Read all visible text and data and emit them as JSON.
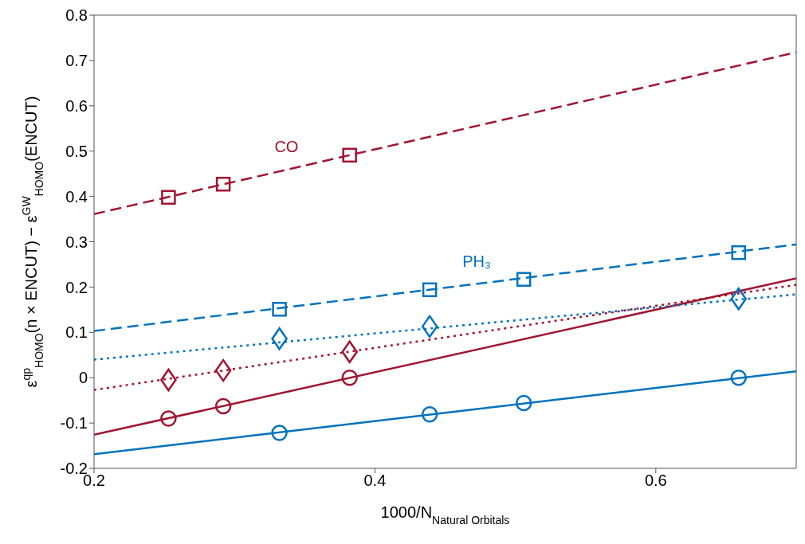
{
  "chart_data": {
    "type": "line",
    "xlabel": "1000/N$_{Natural Orbitals}$",
    "ylabel": "ε$^{qp}$$_{HOMO}$(n × ENCUT) − ε$^{GW}$$_{HOMO}$(ENCUT)",
    "xlim": [
      0.2,
      0.7
    ],
    "xticks": [
      0.2,
      0.4,
      0.6
    ],
    "ylim": [
      -0.2,
      0.8
    ],
    "yticks": [
      -0.2,
      -0.1,
      0,
      0.1,
      0.2,
      0.3,
      0.4,
      0.5,
      0.6,
      0.7,
      0.8
    ],
    "grid": false,
    "legend": false,
    "series": [
      {
        "type": "scatter",
        "name": "CO",
        "color": "#a2142f",
        "marker": "square",
        "x": [
          0.253,
          0.292,
          0.382
        ],
        "values": [
          0.398,
          0.427,
          0.491
        ]
      },
      {
        "color": "#a2142f",
        "line_style": "dashed",
        "marker": "none",
        "x": [
          0.2,
          0.7
        ],
        "values": [
          0.361,
          0.718
        ]
      },
      {
        "type": "scatter",
        "color": "#a2142f",
        "marker": "diamond",
        "x": [
          0.253,
          0.292,
          0.382
        ],
        "values": [
          -0.005,
          0.016,
          0.057
        ]
      },
      {
        "color": "#a2142f",
        "line_style": "dotted",
        "marker": "none",
        "x": [
          0.2,
          0.7
        ],
        "values": [
          -0.027,
          0.205
        ]
      },
      {
        "type": "scatter",
        "color": "#a2142f",
        "marker": "circle",
        "x": [
          0.253,
          0.292,
          0.382
        ],
        "values": [
          -0.09,
          -0.063,
          0.0
        ]
      },
      {
        "color": "#a2142f",
        "line_style": "solid",
        "marker": "none",
        "x": [
          0.2,
          0.7
        ],
        "values": [
          -0.126,
          0.219
        ]
      },
      {
        "type": "scatter",
        "name": "PH₃",
        "color": "#0072bd",
        "marker": "square",
        "x": [
          0.332,
          0.439,
          0.506,
          0.659
        ],
        "values": [
          0.151,
          0.194,
          0.217,
          0.276
        ]
      },
      {
        "color": "#0072bd",
        "line_style": "dashed",
        "marker": "none",
        "x": [
          0.2,
          0.7
        ],
        "values": [
          0.103,
          0.294
        ]
      },
      {
        "type": "scatter",
        "color": "#0072bd",
        "marker": "diamond",
        "x": [
          0.332,
          0.439,
          0.659
        ],
        "values": [
          0.086,
          0.113,
          0.174
        ]
      },
      {
        "color": "#0072bd",
        "line_style": "dotted",
        "marker": "none",
        "x": [
          0.2,
          0.7
        ],
        "values": [
          0.04,
          0.184
        ]
      },
      {
        "type": "scatter",
        "color": "#0072bd",
        "marker": "circle",
        "x": [
          0.332,
          0.439,
          0.506,
          0.659
        ],
        "values": [
          -0.122,
          -0.081,
          -0.056,
          0.0
        ]
      },
      {
        "color": "#0072bd",
        "line_style": "solid",
        "marker": "none",
        "x": [
          0.2,
          0.7
        ],
        "values": [
          -0.169,
          0.014
        ]
      }
    ]
  }
}
